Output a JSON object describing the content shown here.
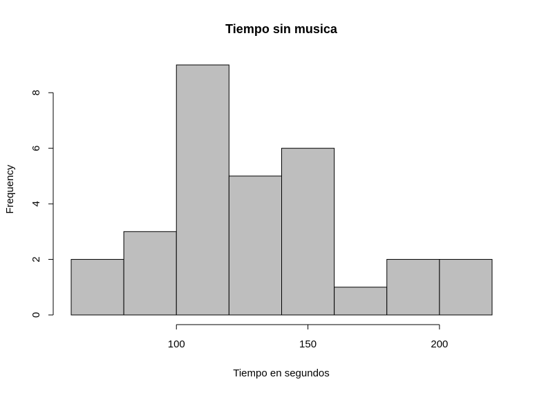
{
  "chart_data": {
    "type": "bar",
    "subtype": "histogram",
    "title": "Tiempo sin musica",
    "xlabel": "Tiempo en segundos",
    "ylabel": "Frequency",
    "bins": [
      {
        "from": 60,
        "to": 80,
        "count": 2
      },
      {
        "from": 80,
        "to": 100,
        "count": 3
      },
      {
        "from": 100,
        "to": 120,
        "count": 9
      },
      {
        "from": 120,
        "to": 140,
        "count": 5
      },
      {
        "from": 140,
        "to": 160,
        "count": 6
      },
      {
        "from": 160,
        "to": 180,
        "count": 1
      },
      {
        "from": 180,
        "to": 200,
        "count": 2
      },
      {
        "from": 200,
        "to": 220,
        "count": 2
      }
    ],
    "xticks": [
      100,
      150,
      200
    ],
    "yticks": [
      0,
      2,
      4,
      6,
      8
    ],
    "xlim": [
      60,
      220
    ],
    "ylim": [
      0,
      9
    ],
    "colors": {
      "bar_fill": "#bebebe",
      "bar_stroke": "#000000"
    },
    "grid": false,
    "legend": "none"
  }
}
